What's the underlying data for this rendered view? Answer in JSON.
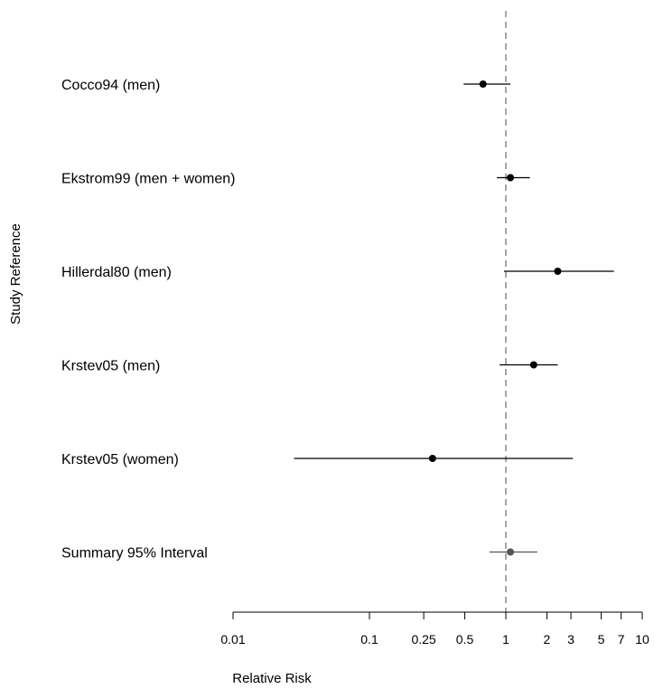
{
  "chart_data": {
    "type": "forest",
    "xscale": "log",
    "xlim": [
      0.01,
      10
    ],
    "xlabel": "Relative Risk",
    "ylabel": "Study Reference",
    "reference_line": 1,
    "xticks": [
      0.01,
      0.1,
      0.25,
      0.5,
      1,
      2,
      3,
      5,
      7,
      10
    ],
    "xtick_labels": [
      "0.01",
      "0.1",
      "0.25",
      "0.5",
      "1",
      "2",
      "3",
      "5",
      "7",
      "10"
    ],
    "studies": [
      {
        "label": "Cocco94 (men)",
        "estimate": 0.68,
        "lower": 0.49,
        "upper": 1.08
      },
      {
        "label": "Ekstrom99 (men +  women)",
        "estimate": 1.08,
        "lower": 0.86,
        "upper": 1.5
      },
      {
        "label": "Hillerdal80 (men)",
        "estimate": 2.4,
        "lower": 0.97,
        "upper": 6.2
      },
      {
        "label": "Krstev05 (men)",
        "estimate": 1.6,
        "lower": 0.9,
        "upper": 2.4
      },
      {
        "label": "Krstev05 (women)",
        "estimate": 0.29,
        "lower": 0.028,
        "upper": 3.1
      }
    ],
    "summary": {
      "label": "Summary 95% Interval",
      "estimate": 1.08,
      "lower": 0.76,
      "upper": 1.7
    },
    "colors": {
      "study": "#000000",
      "summary": "#555555",
      "reference": "#888888"
    }
  }
}
